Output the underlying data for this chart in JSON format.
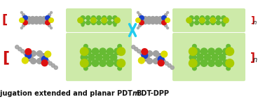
{
  "caption_text1": "High molecular weight, conjugation extended and planar PDT",
  "caption_text2": "m",
  "caption_text3": "BDT-DPP",
  "caption_fontsize": 7.0,
  "background_color": "#ffffff",
  "fig_width": 3.78,
  "fig_height": 1.49,
  "dpi": 100,
  "green_box_color": "#c8e8a0",
  "arrow_color": "#22ccee",
  "bracket_color": "#cc1111",
  "atom_colors": {
    "C": "#a0a0a0",
    "N": "#1a3fcc",
    "O": "#dd1111",
    "S": "#dddd00",
    "GC": "#66bb33",
    "GCS": "#aacc00"
  }
}
